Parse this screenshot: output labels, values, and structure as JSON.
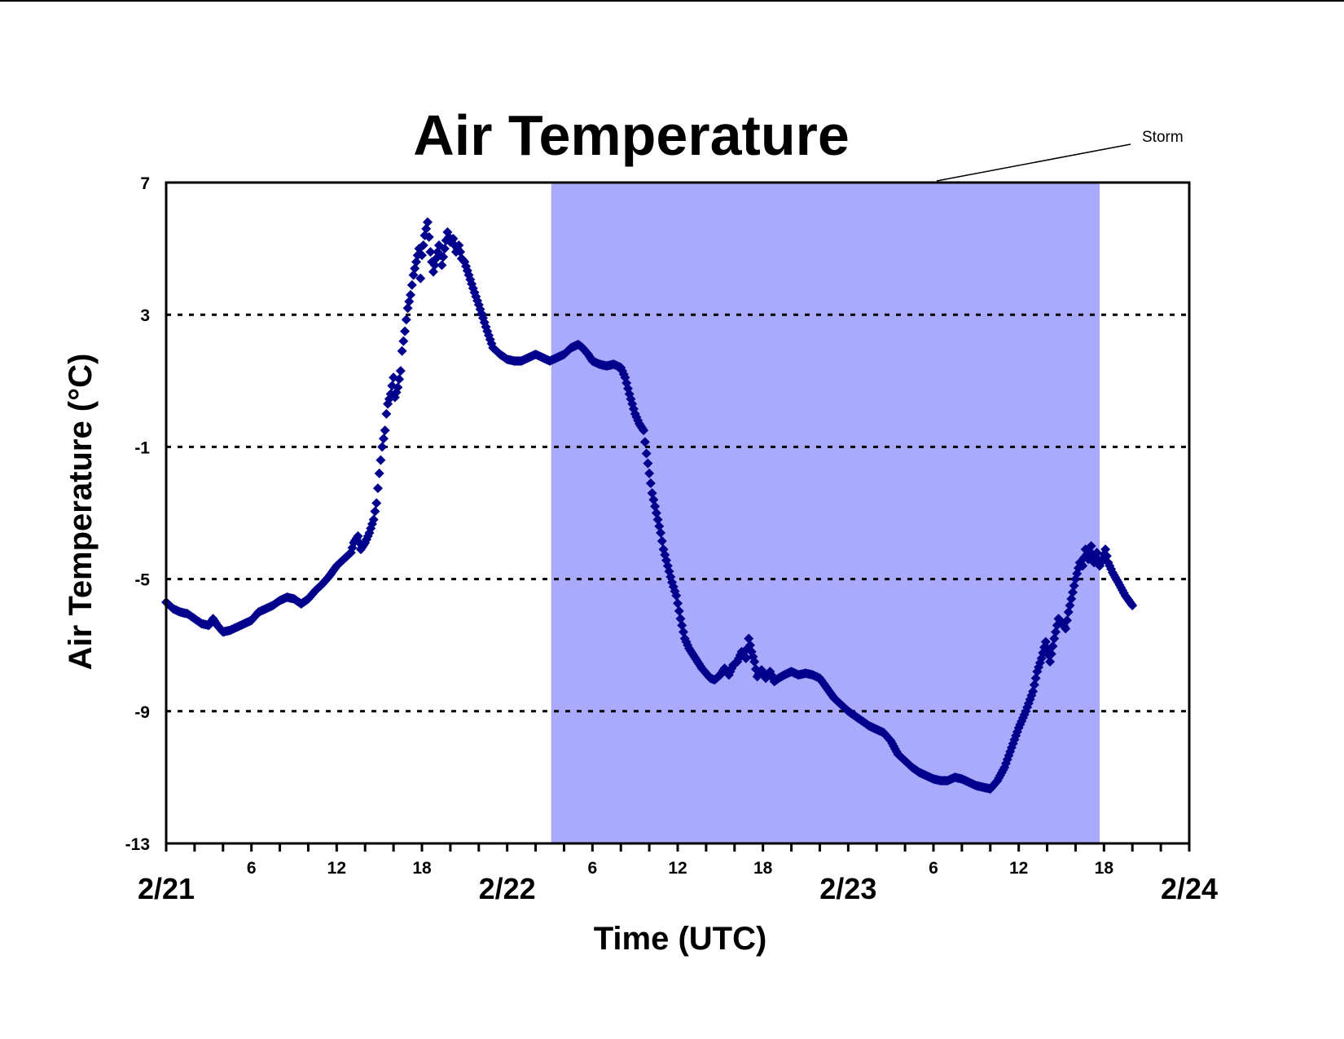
{
  "chart_data": {
    "type": "scatter",
    "title": "Air Temperature",
    "xlabel": "Time (UTC)",
    "ylabel": "Air Temperature (°C)",
    "x_unit": "hours from 2/21 00 UTC",
    "xlim": [
      0,
      72
    ],
    "ylim": [
      -13,
      7
    ],
    "y_ticks": [
      7,
      3,
      -1,
      -5,
      -9,
      -13
    ],
    "y_tick_labels": [
      "7",
      "3",
      "-1",
      "-5",
      "-9",
      "-13"
    ],
    "y_grid": [
      3,
      -1,
      -5,
      -9
    ],
    "x_minor_ticks_every": 2,
    "x_hour_labels": [
      {
        "x": 6,
        "label": "6"
      },
      {
        "x": 12,
        "label": "12"
      },
      {
        "x": 18,
        "label": "18"
      },
      {
        "x": 30,
        "label": "6"
      },
      {
        "x": 36,
        "label": "12"
      },
      {
        "x": 42,
        "label": "18"
      },
      {
        "x": 54,
        "label": "6"
      },
      {
        "x": 60,
        "label": "12"
      },
      {
        "x": 66,
        "label": "18"
      }
    ],
    "x_day_labels": [
      {
        "x": 0,
        "label": "2/21"
      },
      {
        "x": 24,
        "label": "2/22"
      },
      {
        "x": 48,
        "label": "2/23"
      },
      {
        "x": 72,
        "label": "2/24"
      }
    ],
    "shaded_region": {
      "label": "Storm",
      "x_start": 27.1,
      "x_end": 65.7,
      "color": "#aaaafc"
    },
    "marker_color": "#00008c",
    "series": [
      {
        "name": "",
        "points": [
          [
            0,
            -5.7
          ],
          [
            0.5,
            -5.9
          ],
          [
            1,
            -6.0
          ],
          [
            1.5,
            -6.05
          ],
          [
            2,
            -6.2
          ],
          [
            2.5,
            -6.35
          ],
          [
            3,
            -6.4
          ],
          [
            3.3,
            -6.2
          ],
          [
            3.6,
            -6.4
          ],
          [
            4,
            -6.6
          ],
          [
            4.5,
            -6.55
          ],
          [
            5,
            -6.45
          ],
          [
            5.5,
            -6.35
          ],
          [
            6,
            -6.25
          ],
          [
            6.5,
            -6.0
          ],
          [
            7,
            -5.9
          ],
          [
            7.5,
            -5.8
          ],
          [
            8,
            -5.65
          ],
          [
            8.5,
            -5.55
          ],
          [
            9,
            -5.6
          ],
          [
            9.5,
            -5.75
          ],
          [
            10,
            -5.6
          ],
          [
            10.5,
            -5.35
          ],
          [
            11,
            -5.15
          ],
          [
            11.5,
            -4.9
          ],
          [
            12,
            -4.6
          ],
          [
            12.5,
            -4.4
          ],
          [
            13,
            -4.2
          ],
          [
            13.2,
            -3.9
          ],
          [
            13.5,
            -3.7
          ],
          [
            13.7,
            -4.1
          ],
          [
            14,
            -3.9
          ],
          [
            14.3,
            -3.6
          ],
          [
            14.6,
            -3.2
          ],
          [
            14.8,
            -2.7
          ],
          [
            15,
            -1.8
          ],
          [
            15.2,
            -1.0
          ],
          [
            15.4,
            -0.5
          ],
          [
            15.5,
            0.0
          ],
          [
            15.6,
            0.3
          ],
          [
            15.8,
            0.6
          ],
          [
            16,
            1.1
          ],
          [
            16.1,
            0.5
          ],
          [
            16.3,
            0.8
          ],
          [
            16.5,
            1.3
          ],
          [
            16.6,
            1.9
          ],
          [
            16.8,
            2.5
          ],
          [
            17,
            3.2
          ],
          [
            17.2,
            3.6
          ],
          [
            17.4,
            4.2
          ],
          [
            17.6,
            4.6
          ],
          [
            17.8,
            5.0
          ],
          [
            17.9,
            4.1
          ],
          [
            18.0,
            4.8
          ],
          [
            18.2,
            5.4
          ],
          [
            18.4,
            5.8
          ],
          [
            18.6,
            4.9
          ],
          [
            18.8,
            4.3
          ],
          [
            19.0,
            4.7
          ],
          [
            19.2,
            5.1
          ],
          [
            19.4,
            4.5
          ],
          [
            19.6,
            5.0
          ],
          [
            19.8,
            5.5
          ],
          [
            20.0,
            5.2
          ],
          [
            20.2,
            5.3
          ],
          [
            20.4,
            4.9
          ],
          [
            20.6,
            5.1
          ],
          [
            20.8,
            4.7
          ],
          [
            21.0,
            4.6
          ],
          [
            21.3,
            4.2
          ],
          [
            21.6,
            3.8
          ],
          [
            22,
            3.3
          ],
          [
            22.3,
            2.9
          ],
          [
            22.6,
            2.5
          ],
          [
            23,
            2.0
          ],
          [
            23.5,
            1.8
          ],
          [
            24,
            1.65
          ],
          [
            24.5,
            1.6
          ],
          [
            25,
            1.6
          ],
          [
            25.5,
            1.7
          ],
          [
            26,
            1.8
          ],
          [
            26.5,
            1.7
          ],
          [
            27,
            1.6
          ],
          [
            27.5,
            1.7
          ],
          [
            28,
            1.8
          ],
          [
            28.5,
            2.0
          ],
          [
            29,
            2.1
          ],
          [
            29.3,
            2.0
          ],
          [
            29.7,
            1.8
          ],
          [
            30,
            1.6
          ],
          [
            30.5,
            1.5
          ],
          [
            31,
            1.45
          ],
          [
            31.5,
            1.5
          ],
          [
            32,
            1.4
          ],
          [
            32.3,
            1.1
          ],
          [
            32.6,
            0.6
          ],
          [
            33,
            0.0
          ],
          [
            33.3,
            -0.3
          ],
          [
            33.6,
            -0.5
          ],
          [
            33.8,
            -1.2
          ],
          [
            34,
            -1.8
          ],
          [
            34.2,
            -2.4
          ],
          [
            34.5,
            -3.0
          ],
          [
            34.8,
            -3.6
          ],
          [
            35,
            -4.1
          ],
          [
            35.3,
            -4.6
          ],
          [
            35.6,
            -5.1
          ],
          [
            35.9,
            -5.5
          ],
          [
            36.2,
            -6.2
          ],
          [
            36.5,
            -6.8
          ],
          [
            36.8,
            -7.1
          ],
          [
            37.1,
            -7.3
          ],
          [
            37.4,
            -7.5
          ],
          [
            37.7,
            -7.7
          ],
          [
            38,
            -7.85
          ],
          [
            38.3,
            -8.0
          ],
          [
            38.6,
            -8.05
          ],
          [
            39,
            -7.9
          ],
          [
            39.3,
            -7.7
          ],
          [
            39.6,
            -7.9
          ],
          [
            39.9,
            -7.6
          ],
          [
            40.2,
            -7.5
          ],
          [
            40.5,
            -7.2
          ],
          [
            40.8,
            -7.4
          ],
          [
            41.0,
            -6.8
          ],
          [
            41.2,
            -7.2
          ],
          [
            41.4,
            -7.5
          ],
          [
            41.6,
            -7.95
          ],
          [
            41.9,
            -7.75
          ],
          [
            42.2,
            -8.0
          ],
          [
            42.5,
            -7.8
          ],
          [
            42.8,
            -8.1
          ],
          [
            43.1,
            -8.0
          ],
          [
            43.5,
            -7.9
          ],
          [
            44,
            -7.8
          ],
          [
            44.5,
            -7.9
          ],
          [
            45,
            -7.85
          ],
          [
            45.5,
            -7.9
          ],
          [
            46,
            -8.0
          ],
          [
            46.5,
            -8.3
          ],
          [
            47,
            -8.6
          ],
          [
            47.5,
            -8.8
          ],
          [
            48,
            -9.0
          ],
          [
            48.5,
            -9.15
          ],
          [
            49,
            -9.3
          ],
          [
            49.5,
            -9.45
          ],
          [
            50,
            -9.55
          ],
          [
            50.5,
            -9.65
          ],
          [
            51,
            -9.9
          ],
          [
            51.5,
            -10.3
          ],
          [
            52,
            -10.5
          ],
          [
            52.5,
            -10.7
          ],
          [
            53,
            -10.85
          ],
          [
            53.5,
            -10.95
          ],
          [
            54,
            -11.05
          ],
          [
            54.5,
            -11.1
          ],
          [
            55,
            -11.1
          ],
          [
            55.5,
            -11.0
          ],
          [
            56,
            -11.05
          ],
          [
            56.5,
            -11.15
          ],
          [
            57,
            -11.25
          ],
          [
            57.5,
            -11.3
          ],
          [
            58,
            -11.35
          ],
          [
            58.5,
            -11.1
          ],
          [
            59,
            -10.7
          ],
          [
            59.5,
            -10.1
          ],
          [
            60,
            -9.5
          ],
          [
            60.5,
            -9.0
          ],
          [
            61,
            -8.4
          ],
          [
            61.3,
            -7.8
          ],
          [
            61.6,
            -7.4
          ],
          [
            61.9,
            -6.9
          ],
          [
            62.2,
            -7.5
          ],
          [
            62.5,
            -6.8
          ],
          [
            62.8,
            -6.2
          ],
          [
            63,
            -6.3
          ],
          [
            63.3,
            -6.5
          ],
          [
            63.5,
            -6.0
          ],
          [
            63.8,
            -5.4
          ],
          [
            64,
            -5.0
          ],
          [
            64.3,
            -4.5
          ],
          [
            64.5,
            -4.6
          ],
          [
            64.7,
            -4.1
          ],
          [
            64.9,
            -4.4
          ],
          [
            65.1,
            -4.0
          ],
          [
            65.3,
            -4.5
          ],
          [
            65.5,
            -4.2
          ],
          [
            65.7,
            -4.6
          ],
          [
            65.9,
            -4.4
          ],
          [
            66.1,
            -4.1
          ],
          [
            66.3,
            -4.5
          ],
          [
            66.6,
            -4.8
          ],
          [
            67,
            -5.1
          ],
          [
            67.5,
            -5.5
          ],
          [
            68,
            -5.8
          ]
        ]
      }
    ]
  }
}
